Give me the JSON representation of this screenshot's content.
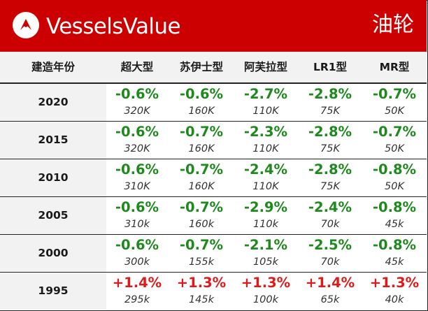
{
  "header": {
    "brand": "VesselsValue",
    "title": "油轮",
    "colors": {
      "banner": "#cc0000",
      "negative_change": "#1e8a1e",
      "positive_change": "#e01a1a"
    }
  },
  "table": {
    "columns": [
      "建造年份",
      "超大型",
      "苏伊士型",
      "阿芙拉型",
      "LR1型",
      "MR型"
    ],
    "rows": [
      {
        "year": "2020",
        "cells": [
          {
            "change": "-0.6%",
            "value": "320K"
          },
          {
            "change": "-0.6%",
            "value": "160K"
          },
          {
            "change": "-2.7%",
            "value": "110K"
          },
          {
            "change": "-2.8%",
            "value": "75K"
          },
          {
            "change": "-0.7%",
            "value": "50K"
          }
        ]
      },
      {
        "year": "2015",
        "cells": [
          {
            "change": "-0.6%",
            "value": "320K"
          },
          {
            "change": "-0.7%",
            "value": "160K"
          },
          {
            "change": "-2.3%",
            "value": "110K"
          },
          {
            "change": "-2.8%",
            "value": "75K"
          },
          {
            "change": "-0.7%",
            "value": "50K"
          }
        ]
      },
      {
        "year": "2010",
        "cells": [
          {
            "change": "-0.6%",
            "value": "310K"
          },
          {
            "change": "-0.7%",
            "value": "160K"
          },
          {
            "change": "-2.4%",
            "value": "110K"
          },
          {
            "change": "-2.8%",
            "value": "75K"
          },
          {
            "change": "-0.8%",
            "value": "50K"
          }
        ]
      },
      {
        "year": "2005",
        "cells": [
          {
            "change": "-0.6%",
            "value": "310k"
          },
          {
            "change": "-0.7%",
            "value": "160k"
          },
          {
            "change": "-2.9%",
            "value": "110k"
          },
          {
            "change": "-2.4%",
            "value": "70k"
          },
          {
            "change": "-0.8%",
            "value": "45k"
          }
        ]
      },
      {
        "year": "2000",
        "cells": [
          {
            "change": "-0.6%",
            "value": "300k"
          },
          {
            "change": "-0.7%",
            "value": "155k"
          },
          {
            "change": "-2.1%",
            "value": "105k"
          },
          {
            "change": "-2.5%",
            "value": "70k"
          },
          {
            "change": "-0.8%",
            "value": "45k"
          }
        ]
      },
      {
        "year": "1995",
        "cells": [
          {
            "change": "+1.4%",
            "value": "295k"
          },
          {
            "change": "+1.3%",
            "value": "145k"
          },
          {
            "change": "+1.3%",
            "value": "100k"
          },
          {
            "change": "+1.4%",
            "value": "65k"
          },
          {
            "change": "+1.3%",
            "value": "40k"
          }
        ]
      }
    ]
  }
}
